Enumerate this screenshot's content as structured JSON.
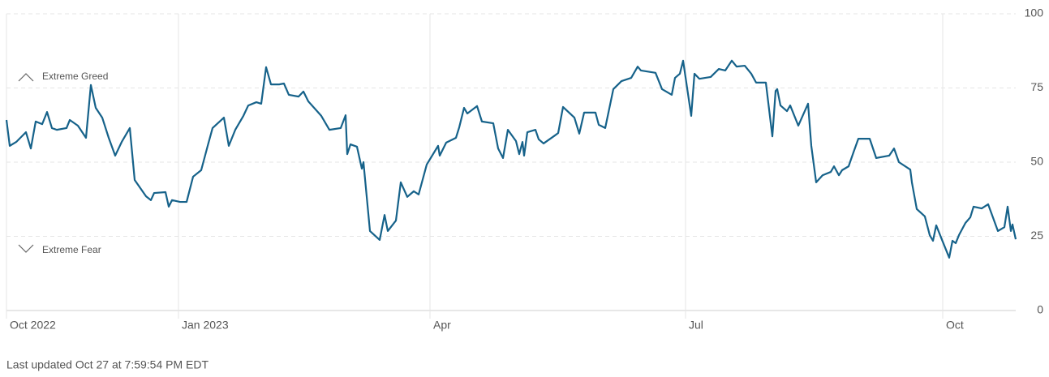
{
  "chart_data": {
    "type": "line",
    "footer": "Last updated Oct 27 at 7:59:54 PM EDT",
    "annotations": [
      "Extreme Greed",
      "Extreme Fear"
    ],
    "xlim": [
      0,
      248.8
    ],
    "xticks": [
      {
        "value": 0,
        "label": "Oct 2022"
      },
      {
        "value": 42.4,
        "label": "Jan 2023"
      },
      {
        "value": 104.4,
        "label": "Apr"
      },
      {
        "value": 167.4,
        "label": "Jul"
      },
      {
        "value": 230.8,
        "label": "Oct"
      }
    ],
    "ylim": [
      0,
      100
    ],
    "yticks": [
      0,
      25,
      50,
      75,
      100
    ],
    "grid": true,
    "color": "#16628a",
    "x": [
      0,
      0.8,
      2.4,
      4.8,
      6,
      7.2,
      8.8,
      10,
      11.2,
      12.4,
      14.8,
      15.6,
      17.6,
      19.6,
      20.8,
      22,
      23.6,
      25.2,
      26.8,
      28.4,
      30.4,
      31.6,
      34.4,
      35.6,
      36.4,
      39.2,
      40,
      40.8,
      42.8,
      44.4,
      46,
      48,
      49.6,
      50.8,
      53.6,
      54.8,
      56.4,
      58.4,
      59.6,
      61.6,
      62.8,
      64,
      65.2,
      67.2,
      68.4,
      69.6,
      72,
      73.2,
      74.4,
      77.6,
      79.6,
      82.4,
      83.6,
      84,
      84.8,
      86.4,
      87.6,
      88,
      89.6,
      92,
      93.2,
      94,
      96,
      97.2,
      98.8,
      100.4,
      101.6,
      103.6,
      106.4,
      106.8,
      108.4,
      110.8,
      111.6,
      112.8,
      113.6,
      116,
      117.2,
      120,
      121.2,
      122.4,
      123.6,
      125.6,
      126.4,
      127.2,
      127.6,
      128.4,
      130.4,
      131.2,
      132.4,
      135.2,
      136,
      137.2,
      140,
      141.2,
      142.4,
      145.2,
      146,
      147.6,
      149.6,
      151.6,
      154,
      155.6,
      156.4,
      160,
      161.6,
      164,
      164.8,
      166,
      166.8,
      168.8,
      169.6,
      170.8,
      173.6,
      175.6,
      177.2,
      178.8,
      180,
      182,
      183.6,
      184.8,
      187.2,
      188.8,
      189.6,
      190,
      190.8,
      192.4,
      193.2,
      195.2,
      197.6,
      198.4,
      199.6,
      201.2,
      203.2,
      204,
      205.2,
      206,
      207.6,
      208.8,
      210,
      212.8,
      214.4,
      217.6,
      218.8,
      220,
      222.8,
      223.2,
      224.4,
      226.4,
      227.6,
      228.4,
      229.2,
      230.8,
      232.4,
      233.2,
      234,
      234.8,
      236.4,
      237.6,
      238.4,
      240.4,
      242,
      244.4,
      246,
      246.8,
      247.6,
      248,
      248.8
    ],
    "values": [
      64.2,
      55.5,
      56.8,
      60.1,
      54.6,
      63.7,
      62.8,
      66.9,
      61.5,
      60.9,
      61.5,
      64.2,
      62.3,
      58.2,
      76,
      68.3,
      65,
      58.2,
      52.2,
      56.8,
      61.5,
      44,
      38.5,
      37.2,
      39.6,
      39.9,
      35,
      37.2,
      36.6,
      36.6,
      45.1,
      47.3,
      55.5,
      61.5,
      65,
      55.5,
      60.9,
      65.6,
      69.1,
      70.2,
      69.7,
      82,
      76.2,
      76.2,
      76.5,
      72.7,
      72.1,
      73.8,
      70.5,
      65.6,
      60.9,
      61.5,
      65.8,
      52.7,
      56,
      55.2,
      47.8,
      50,
      26.8,
      23.8,
      32.2,
      26.8,
      30.3,
      43.2,
      38.3,
      40.2,
      39.1,
      49.2,
      55.5,
      52.2,
      56.6,
      58.2,
      61.7,
      68.3,
      66.4,
      68.9,
      63.7,
      63.1,
      54.6,
      51.4,
      60.9,
      57.1,
      52.7,
      56.8,
      52.2,
      60.1,
      60.9,
      57.7,
      56.3,
      59,
      59.8,
      68.6,
      65,
      59.6,
      66.7,
      66.7,
      62.6,
      61.5,
      74.6,
      77.3,
      78.4,
      82.2,
      80.9,
      80.1,
      74.6,
      72.7,
      78.4,
      79.8,
      84.2,
      65.6,
      79.8,
      78.1,
      78.7,
      81.4,
      80.9,
      84.2,
      82.2,
      82.5,
      79.8,
      76.8,
      76.8,
      58.7,
      74,
      74.6,
      69.1,
      67.2,
      69.1,
      62.3,
      69.7,
      55.5,
      43.2,
      45.6,
      46.7,
      48.6,
      45.6,
      47.3,
      48.6,
      53.3,
      57.9,
      57.9,
      51.4,
      52.2,
      54.6,
      50,
      47.5,
      43.2,
      34.2,
      31.7,
      25.4,
      23.5,
      28.7,
      23.2,
      17.8,
      23.5,
      22.7,
      25.4,
      29.5,
      31.4,
      35,
      34.4,
      35.8,
      26.8,
      28.1,
      35,
      26.8,
      29,
      24
    ]
  }
}
